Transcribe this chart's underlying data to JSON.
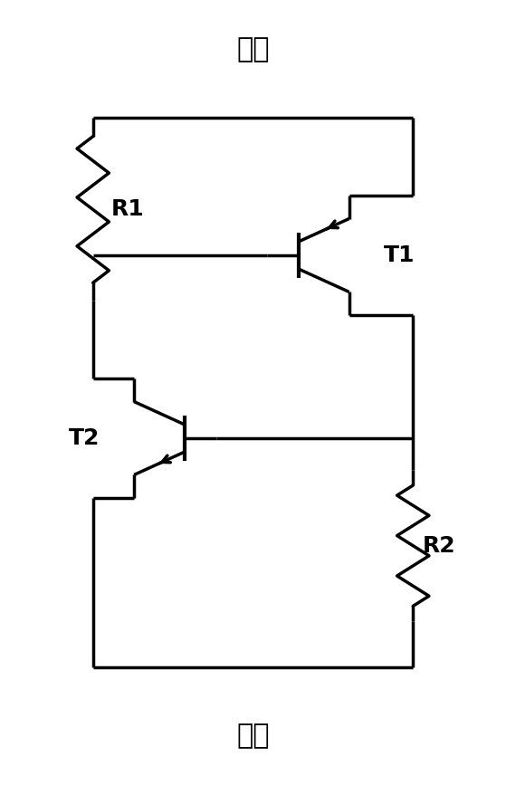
{
  "title_top": "阳极",
  "title_bottom": "阴极",
  "label_R1": "R1",
  "label_R2": "R2",
  "label_T1": "T1",
  "label_T2": "T2",
  "bg_color": "#ffffff",
  "line_color": "#000000",
  "lw": 2.5
}
